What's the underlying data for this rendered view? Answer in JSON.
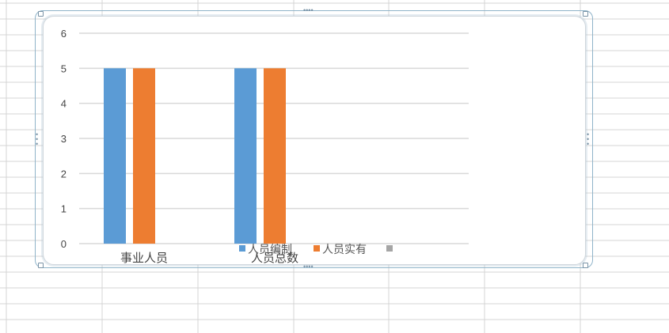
{
  "chart_data": {
    "type": "bar",
    "categories": [
      "事业人员",
      "人员总数"
    ],
    "series": [
      {
        "name": "人员编制",
        "values": [
          5,
          5
        ],
        "color": "#5b9bd5"
      },
      {
        "name": "人员实有",
        "values": [
          5,
          5
        ],
        "color": "#ed7d31"
      },
      {
        "name": "",
        "values": [
          null,
          null
        ],
        "color": "#a5a5a5"
      }
    ],
    "ylim": [
      0,
      6
    ],
    "yticks": [
      0,
      1,
      2,
      3,
      4,
      5,
      6
    ],
    "grid": true,
    "legend_position": "bottom"
  },
  "colors": {
    "gridline": "#d9d9d9",
    "spreadsheet_grid": "#d4d4d4",
    "frame": "#8fb3c9"
  }
}
